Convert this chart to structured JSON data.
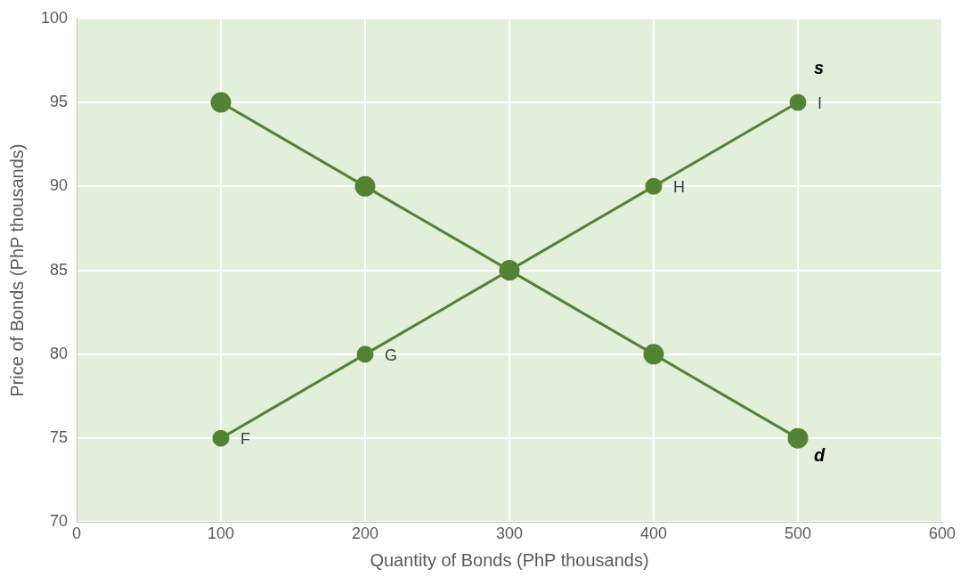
{
  "chart_data": {
    "type": "line",
    "xlabel": "Quantity of Bonds (PhP thousands)",
    "ylabel": "Price of Bonds (PhP thousands)",
    "x": [
      100,
      200,
      300,
      400,
      500
    ],
    "series": [
      {
        "name": "s",
        "color": "#548235",
        "values": [
          75,
          80,
          85,
          90,
          95
        ]
      },
      {
        "name": "d",
        "color": "#548235",
        "values": [
          95,
          90,
          85,
          80,
          75
        ]
      }
    ],
    "annotations": [
      {
        "text": "F",
        "x": 100,
        "y": 75
      },
      {
        "text": "G",
        "x": 200,
        "y": 80
      },
      {
        "text": "H",
        "x": 400,
        "y": 90
      },
      {
        "text": "I",
        "x": 500,
        "y": 95
      }
    ],
    "xlim": [
      0,
      600
    ],
    "xticks": [
      0,
      100,
      200,
      300,
      400,
      500,
      600
    ],
    "ylim": [
      70,
      100
    ],
    "yticks": [
      70,
      75,
      80,
      85,
      90,
      95,
      100
    ],
    "grid": true,
    "legend": false,
    "marker": "circle",
    "line_style": "solid"
  }
}
